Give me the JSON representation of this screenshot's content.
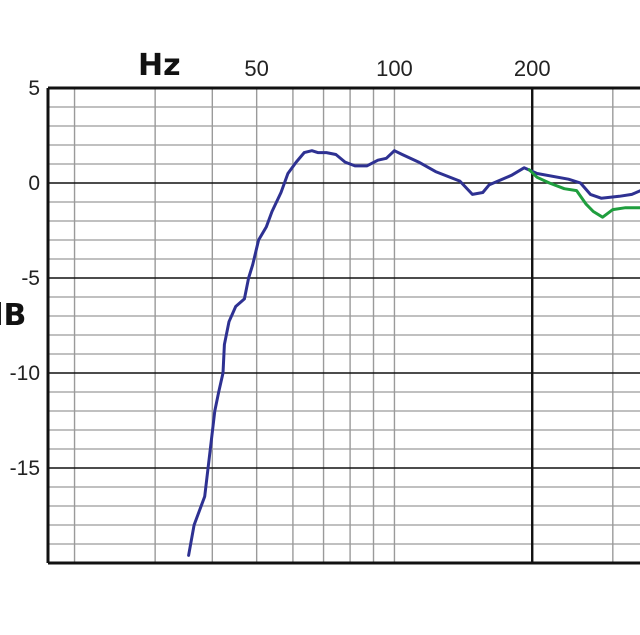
{
  "chart_data": {
    "type": "line",
    "x_unit_label": "Hz",
    "y_unit_label": "dB",
    "x_scale": "log",
    "xlim": [
      17.5,
      400
    ],
    "ylim": [
      -20,
      5
    ],
    "x_ticks": [
      {
        "value": 50,
        "label": "50"
      },
      {
        "value": 100,
        "label": "100"
      },
      {
        "value": 200,
        "label": "200"
      }
    ],
    "y_ticks": [
      {
        "value": 5,
        "label": "5"
      },
      {
        "value": 0,
        "label": "0"
      },
      {
        "value": -5,
        "label": "-5"
      },
      {
        "value": -10,
        "label": "-10"
      },
      {
        "value": -15,
        "label": "-15"
      }
    ],
    "grid": true,
    "series": [
      {
        "color": "#2e3192",
        "points": [
          [
            35.5,
            -19.6
          ],
          [
            36.5,
            -18.0
          ],
          [
            38.5,
            -16.5
          ],
          [
            40.5,
            -12.0
          ],
          [
            41.3,
            -11.0
          ],
          [
            42.2,
            -10.0
          ],
          [
            42.5,
            -8.5
          ],
          [
            43.5,
            -7.3
          ],
          [
            45.0,
            -6.5
          ],
          [
            47.0,
            -6.1
          ],
          [
            48.0,
            -5.0
          ],
          [
            49.0,
            -4.3
          ],
          [
            50.5,
            -3.0
          ],
          [
            52.5,
            -2.3
          ],
          [
            54.0,
            -1.5
          ],
          [
            56.5,
            -0.5
          ],
          [
            58.5,
            0.5
          ],
          [
            61.0,
            1.1
          ],
          [
            63.5,
            1.6
          ],
          [
            66.0,
            1.7
          ],
          [
            68.0,
            1.6
          ],
          [
            71.0,
            1.6
          ],
          [
            74.5,
            1.5
          ],
          [
            78.0,
            1.1
          ],
          [
            82.0,
            0.9
          ],
          [
            87.0,
            0.9
          ],
          [
            92.0,
            1.2
          ],
          [
            96.0,
            1.3
          ],
          [
            100.0,
            1.7
          ],
          [
            104.0,
            1.5
          ],
          [
            113.0,
            1.1
          ],
          [
            123.0,
            0.6
          ],
          [
            139.0,
            0.1
          ],
          [
            148.0,
            -0.6
          ],
          [
            156.0,
            -0.5
          ],
          [
            161.0,
            -0.1
          ],
          [
            180.0,
            0.4
          ],
          [
            192.0,
            0.8
          ],
          [
            205.0,
            0.5
          ],
          [
            240.0,
            0.2
          ],
          [
            255.0,
            0.0
          ],
          [
            268.0,
            -0.6
          ],
          [
            283.0,
            -0.8
          ],
          [
            310.0,
            -0.7
          ],
          [
            330.0,
            -0.6
          ],
          [
            345.0,
            -0.4
          ]
        ]
      },
      {
        "color": "#1f9e3e",
        "points": [
          [
            197.0,
            0.7
          ],
          [
            205.0,
            0.3
          ],
          [
            218.0,
            0.0
          ],
          [
            235.0,
            -0.3
          ],
          [
            250.0,
            -0.4
          ],
          [
            262.0,
            -1.1
          ],
          [
            272.0,
            -1.5
          ],
          [
            285.0,
            -1.8
          ],
          [
            300.0,
            -1.4
          ],
          [
            320.0,
            -1.3
          ],
          [
            345.0,
            -1.3
          ]
        ]
      }
    ]
  }
}
